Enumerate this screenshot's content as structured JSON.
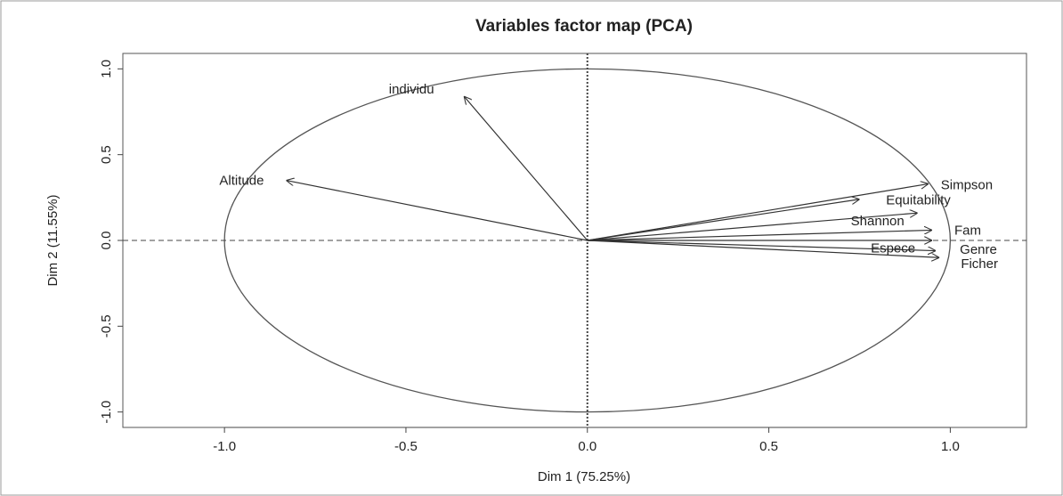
{
  "chart_data": {
    "type": "pca",
    "title": "Variables factor map (PCA)",
    "xlabel": "Dim 1 (75.25%)",
    "ylabel": "Dim 2 (11.55%)",
    "xlim": [
      -1.28,
      1.21
    ],
    "ylim": [
      -1.09,
      1.09
    ],
    "xticks": [
      {
        "value": -1,
        "label": "-1.0"
      },
      {
        "value": -0.5,
        "label": "-0.5"
      },
      {
        "value": 0,
        "label": "0.0"
      },
      {
        "value": 0.5,
        "label": "0.5"
      },
      {
        "value": 1,
        "label": "1.0"
      }
    ],
    "yticks": [
      {
        "value": -1,
        "label": "-1.0"
      },
      {
        "value": -0.5,
        "label": "-0.5"
      },
      {
        "value": 0,
        "label": "0.0"
      },
      {
        "value": 0.5,
        "label": "0.5"
      },
      {
        "value": 1,
        "label": "1.0"
      }
    ],
    "color": "#333333",
    "variables": [
      {
        "name": "individu",
        "x": -0.34,
        "y": 0.84
      },
      {
        "name": "Altitude",
        "x": -0.83,
        "y": 0.35
      },
      {
        "name": "Simpson",
        "x": 0.94,
        "y": 0.33
      },
      {
        "name": "Equitability",
        "x": 0.75,
        "y": 0.24
      },
      {
        "name": "Shannon",
        "x": 0.91,
        "y": 0.16
      },
      {
        "name": "Fam",
        "x": 0.95,
        "y": 0.06
      },
      {
        "name": "Genre",
        "x": 0.95,
        "y": 0.0
      },
      {
        "name": "Espece",
        "x": 0.96,
        "y": -0.06
      },
      {
        "name": "Ficher",
        "x": 0.97,
        "y": -0.1
      }
    ]
  }
}
